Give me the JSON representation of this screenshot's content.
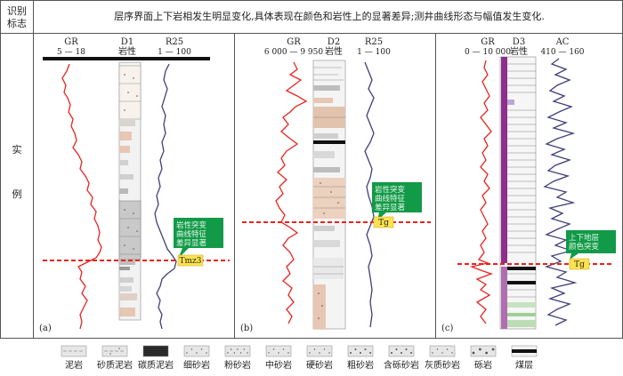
{
  "header": {
    "label": "识别标志",
    "description": "层序界面上下岩相发生明显变化,具体表现在颜色和岩性上的显著差异;测井曲线形态与幅值发生变化."
  },
  "side_label": {
    "chars": [
      "实",
      "例"
    ]
  },
  "panels": [
    {
      "id": "a",
      "tag": "(a)",
      "well": "D1",
      "lith_label": "岩性",
      "left_curve": {
        "name": "GR",
        "range": "5 — 18"
      },
      "right_curve": {
        "name": "R25",
        "range": "1 — 100"
      },
      "callout": [
        "岩性突变",
        "曲线特征",
        "差异显著"
      ],
      "boundary": "Tmz3"
    },
    {
      "id": "b",
      "tag": "(b)",
      "well": "D2",
      "lith_label": "岩性",
      "left_curve": {
        "name": "GR",
        "range": "6 000 — 9 950"
      },
      "right_curve": {
        "name": "R25",
        "range": "1 — 100"
      },
      "callout": [
        "岩性突变",
        "曲线特征",
        "差异显著"
      ],
      "boundary": "Tg"
    },
    {
      "id": "c",
      "tag": "(c)",
      "well": "D3",
      "lith_label": "岩性",
      "left_curve": {
        "name": "GR",
        "range": "0 — 10 000"
      },
      "right_curve": {
        "name": "AC",
        "range": "410 — 160"
      },
      "callout": [
        "上下地层",
        "颜色突变"
      ],
      "boundary": "Tg"
    }
  ],
  "legend": [
    {
      "label": "泥岩",
      "pattern": "mudstone"
    },
    {
      "label": "砂质泥岩",
      "pattern": "sandy-mudstone"
    },
    {
      "label": "碳质泥岩",
      "pattern": "carbonaceous-mudstone"
    },
    {
      "label": "细砂岩",
      "pattern": "fine-sandstone"
    },
    {
      "label": "粉砂岩",
      "pattern": "siltstone"
    },
    {
      "label": "中砂岩",
      "pattern": "medium-sandstone"
    },
    {
      "label": "硬砂岩",
      "pattern": "greywacke"
    },
    {
      "label": "粗砂岩",
      "pattern": "coarse-sandstone"
    },
    {
      "label": "含砾砂岩",
      "pattern": "pebbly-sandstone"
    },
    {
      "label": "灰质砂岩",
      "pattern": "calcareous-sandstone"
    },
    {
      "label": "砾岩",
      "pattern": "conglomerate"
    },
    {
      "label": "煤层",
      "pattern": "coal-seam"
    }
  ],
  "colors": {
    "gr_curve": "#e8231f",
    "resistivity_curve": "#3f3f7a",
    "boundary_line": "#e8231f",
    "callout_fill": "#119a47",
    "boundary_tag_fill": "#ffe34d",
    "coal": "#8e2f8e",
    "rock_tan": "#e7c6b3"
  }
}
